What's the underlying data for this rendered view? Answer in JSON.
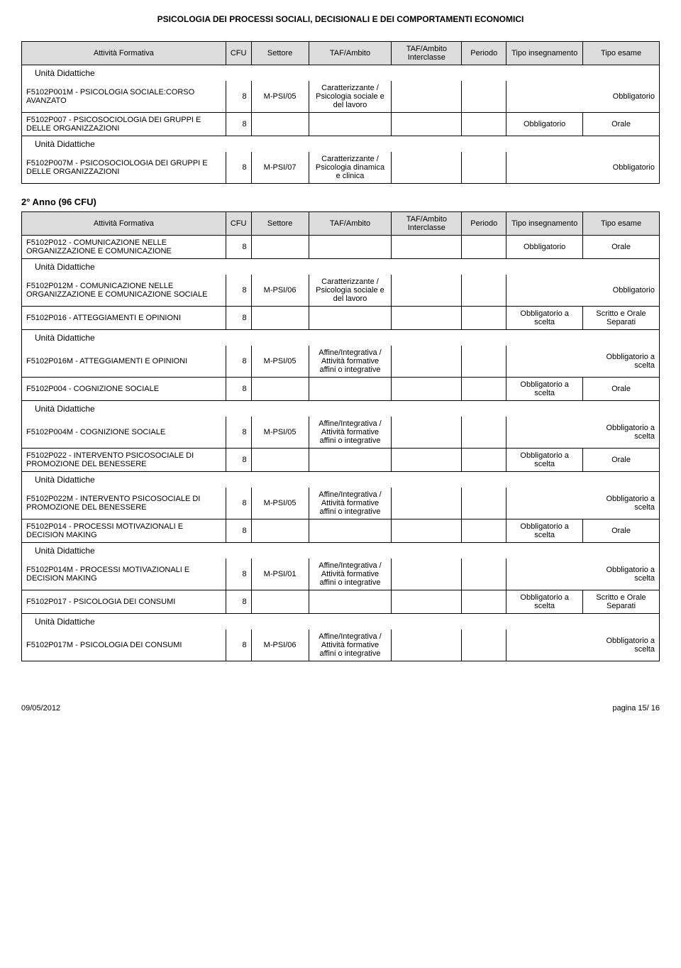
{
  "page_header": "PSICOLOGIA DEI PROCESSI SOCIALI, DECISIONALI E DEI COMPORTAMENTI ECONOMICI",
  "headers": {
    "attivita": "Attività Formativa",
    "cfu": "CFU",
    "settore": "Settore",
    "taf": "TAF/Ambito",
    "taf_inter": "TAF/Ambito Interclasse",
    "periodo": "Periodo",
    "tipo_ins": "Tipo insegnamento",
    "tipo_esame": "Tipo esame"
  },
  "labels": {
    "unita": "Unità Didattiche",
    "anno2": "2° Anno (96 CFU)"
  },
  "taf_texts": {
    "car_sociale": "Caratterizzante / Psicologia sociale e del lavoro",
    "car_clinica": "Caratterizzante / Psicologia dinamica e clinica",
    "affine": "Affine/Integrativa / Attività formative affini o integrative"
  },
  "t1": {
    "r1": {
      "attivita": "F5102P001M - PSICOLOGIA SOCIALE:CORSO AVANZATO",
      "cfu": "8",
      "settore": "M-PSI/05",
      "tipo_esame": "Obbligatorio"
    },
    "r2": {
      "attivita": "F5102P007 - PSICOSOCIOLOGIA DEI GRUPPI E DELLE ORGANIZZAZIONI",
      "cfu": "8",
      "tipo_ins": "Obbligatorio",
      "tipo_esame": "Orale"
    },
    "r3": {
      "attivita": "F5102P007M - PSICOSOCIOLOGIA DEI GRUPPI E DELLE ORGANIZZAZIONI",
      "cfu": "8",
      "settore": "M-PSI/07",
      "tipo_esame": "Obbligatorio"
    }
  },
  "t2": {
    "r1": {
      "attivita": "F5102P012 - COMUNICAZIONE NELLE ORGANIZZAZIONE E COMUNICAZIONE",
      "cfu": "8",
      "tipo_ins": "Obbligatorio",
      "tipo_esame": "Orale"
    },
    "r2": {
      "attivita": "F5102P012M - COMUNICAZIONE NELLE ORGANIZZAZIONE E COMUNICAZIONE SOCIALE",
      "cfu": "8",
      "settore": "M-PSI/06",
      "tipo_esame": "Obbligatorio"
    },
    "r3": {
      "attivita": "F5102P016 - ATTEGGIAMENTI E OPINIONI",
      "cfu": "8",
      "tipo_ins": "Obbligatorio a scelta",
      "tipo_esame": "Scritto e Orale Separati"
    },
    "r4": {
      "attivita": "F5102P016M - ATTEGGIAMENTI E OPINIONI",
      "cfu": "8",
      "settore": "M-PSI/05",
      "tipo_esame": "Obbligatorio a scelta"
    },
    "r5": {
      "attivita": "F5102P004 - COGNIZIONE SOCIALE",
      "cfu": "8",
      "tipo_ins": "Obbligatorio a scelta",
      "tipo_esame": "Orale"
    },
    "r6": {
      "attivita": "F5102P004M - COGNIZIONE SOCIALE",
      "cfu": "8",
      "settore": "M-PSI/05",
      "tipo_esame": "Obbligatorio a scelta"
    },
    "r7": {
      "attivita": "F5102P022 - INTERVENTO PSICOSOCIALE DI PROMOZIONE DEL BENESSERE",
      "cfu": "8",
      "tipo_ins": "Obbligatorio a scelta",
      "tipo_esame": "Orale"
    },
    "r8": {
      "attivita": "F5102P022M - INTERVENTO PSICOSOCIALE DI PROMOZIONE DEL BENESSERE",
      "cfu": "8",
      "settore": "M-PSI/05",
      "tipo_esame": "Obbligatorio a scelta"
    },
    "r9": {
      "attivita": "F5102P014 - PROCESSI MOTIVAZIONALI E DECISION MAKING",
      "cfu": "8",
      "tipo_ins": "Obbligatorio a scelta",
      "tipo_esame": "Orale"
    },
    "r10": {
      "attivita": "F5102P014M - PROCESSI MOTIVAZIONALI E DECISION MAKING",
      "cfu": "8",
      "settore": "M-PSI/01",
      "tipo_esame": "Obbligatorio a scelta"
    },
    "r11": {
      "attivita": "F5102P017 - PSICOLOGIA DEI CONSUMI",
      "cfu": "8",
      "tipo_ins": "Obbligatorio a scelta",
      "tipo_esame": "Scritto e Orale Separati"
    },
    "r12": {
      "attivita": "F5102P017M - PSICOLOGIA DEI CONSUMI",
      "cfu": "8",
      "settore": "M-PSI/06",
      "tipo_esame": "Obbligatorio a scelta"
    }
  },
  "footer": {
    "date": "09/05/2012",
    "page": "pagina 15/ 16"
  }
}
